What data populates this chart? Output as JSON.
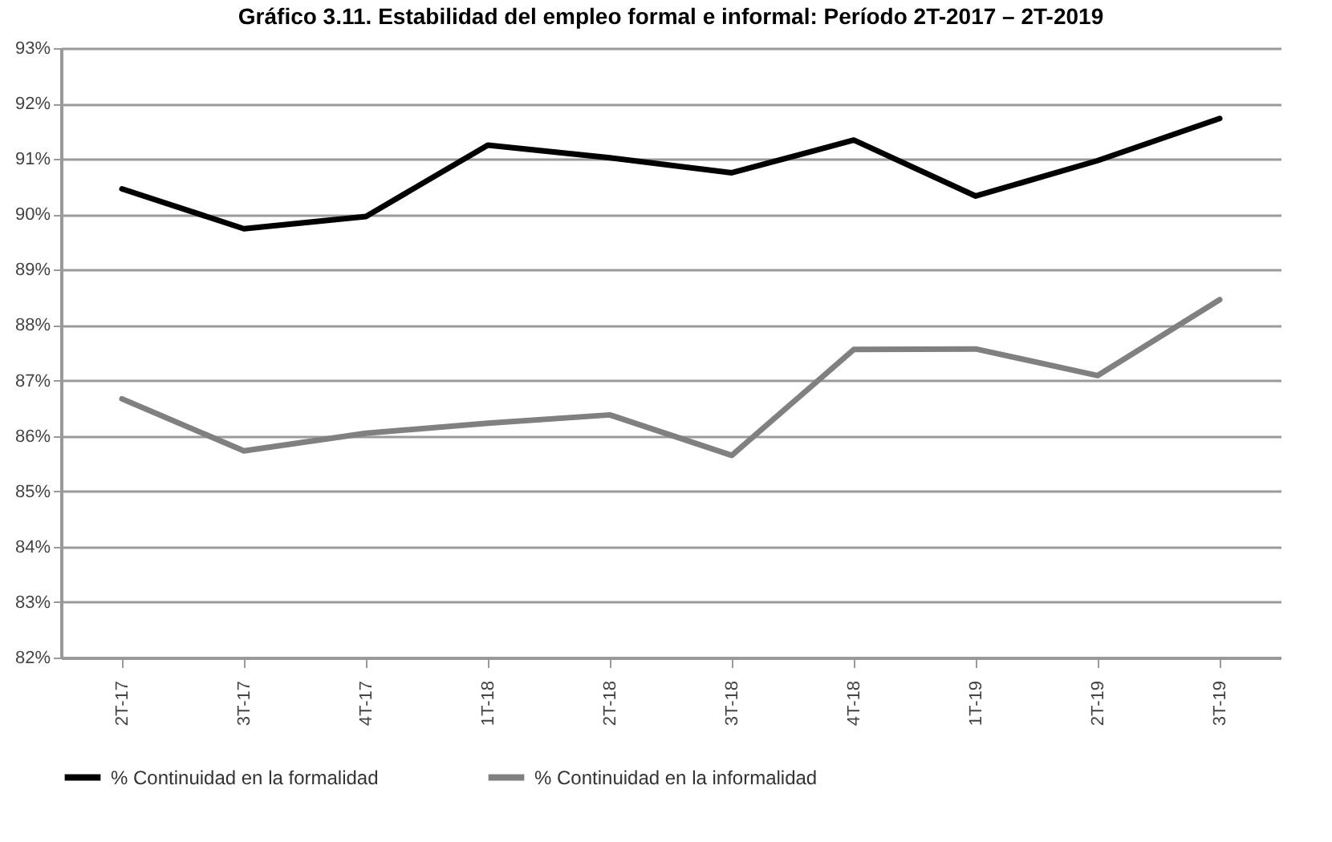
{
  "chart_data": {
    "type": "line",
    "title": "Gráfico 3.11. Estabilidad del empleo formal e informal: Período 2T-2017 – 2T-2019",
    "categories": [
      "2T-17",
      "3T-17",
      "4T-17",
      "1T-18",
      "2T-18",
      "3T-18",
      "4T-18",
      "1T-19",
      "2T-19",
      "3T-19"
    ],
    "series": [
      {
        "name": "% Continuidad en la formalidad",
        "color": "#000000",
        "values": [
          90.46,
          89.74,
          89.96,
          91.25,
          91.02,
          90.75,
          91.34,
          90.33,
          90.97,
          91.73
        ]
      },
      {
        "name": "% Continuidad en la informalidad",
        "color": "#808080",
        "values": [
          86.67,
          85.73,
          86.05,
          86.23,
          86.38,
          85.65,
          87.56,
          87.57,
          87.09,
          88.46
        ]
      }
    ],
    "ylim": [
      82,
      93
    ],
    "yticks": [
      {
        "value": 82,
        "label": "82%"
      },
      {
        "value": 83,
        "label": "83%"
      },
      {
        "value": 84,
        "label": "84%"
      },
      {
        "value": 85,
        "label": "85%"
      },
      {
        "value": 86,
        "label": "86%"
      },
      {
        "value": 87,
        "label": "87%"
      },
      {
        "value": 88,
        "label": "88%"
      },
      {
        "value": 89,
        "label": "89%"
      },
      {
        "value": 90,
        "label": "90%"
      },
      {
        "value": 91,
        "label": "91%"
      },
      {
        "value": 92,
        "label": "92%"
      },
      {
        "value": 93,
        "label": "93%"
      }
    ],
    "grid": "y",
    "legend": "bottom",
    "line_style": "solid",
    "marker": "none"
  }
}
